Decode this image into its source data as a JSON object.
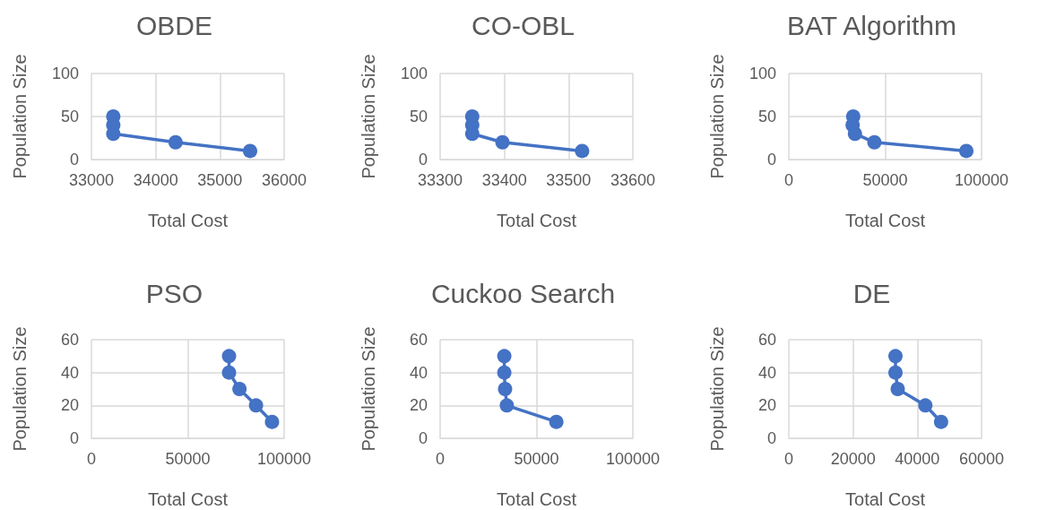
{
  "chart_data": [
    {
      "type": "line",
      "title": "OBDE",
      "xlabel": "Total Cost",
      "ylabel": "Population Size",
      "x": [
        33340,
        33340,
        33340,
        34310,
        35470
      ],
      "values": [
        50,
        40,
        30,
        20,
        10
      ],
      "color": "#4472c4",
      "xlim": [
        33000,
        36000
      ],
      "xticks": [
        33000,
        34000,
        35000,
        36000
      ],
      "ylim": [
        0,
        100
      ],
      "yticks": [
        0,
        50,
        100
      ],
      "grid": true,
      "marker": "circle",
      "line_style": "solid"
    },
    {
      "type": "line",
      "title": "CO-OBL",
      "xlabel": "Total Cost",
      "ylabel": "Population Size",
      "x": [
        33350,
        33350,
        33350,
        33397,
        33521
      ],
      "values": [
        50,
        40,
        30,
        20,
        10
      ],
      "color": "#4472c4",
      "xlim": [
        33300,
        33600
      ],
      "xticks": [
        33300,
        33400,
        33500,
        33600
      ],
      "ylim": [
        0,
        100
      ],
      "yticks": [
        0,
        50,
        100
      ],
      "grid": true,
      "marker": "circle",
      "line_style": "solid"
    },
    {
      "type": "line",
      "title": "BAT Algorithm",
      "xlabel": "Total Cost",
      "ylabel": "Population Size",
      "x": [
        33400,
        33100,
        34300,
        44400,
        92100
      ],
      "values": [
        50,
        40,
        30,
        20,
        10
      ],
      "color": "#4472c4",
      "xlim": [
        0,
        100000
      ],
      "xticks": [
        0,
        50000,
        100000
      ],
      "ylim": [
        0,
        100
      ],
      "yticks": [
        0,
        50,
        100
      ],
      "grid": true,
      "marker": "circle",
      "line_style": "solid"
    },
    {
      "type": "line",
      "title": "PSO",
      "xlabel": "Total Cost",
      "ylabel": "Population Size",
      "x": [
        71400,
        71400,
        76800,
        85400,
        93700
      ],
      "values": [
        50,
        40,
        30,
        20,
        10
      ],
      "color": "#4472c4",
      "xlim": [
        0,
        100000
      ],
      "xticks": [
        0,
        50000,
        100000
      ],
      "ylim": [
        0,
        60
      ],
      "yticks": [
        0,
        20,
        40,
        60
      ],
      "grid": true,
      "marker": "circle",
      "line_style": "solid"
    },
    {
      "type": "line",
      "title": "Cuckoo Search",
      "xlabel": "Total Cost",
      "ylabel": "Population Size",
      "x": [
        33300,
        33300,
        33700,
        34600,
        60300
      ],
      "values": [
        50,
        40,
        30,
        20,
        10
      ],
      "color": "#4472c4",
      "xlim": [
        0,
        100000
      ],
      "xticks": [
        0,
        50000,
        100000
      ],
      "ylim": [
        0,
        60
      ],
      "yticks": [
        0,
        20,
        40,
        60
      ],
      "grid": true,
      "marker": "circle",
      "line_style": "solid"
    },
    {
      "type": "line",
      "title": "DE",
      "xlabel": "Total Cost",
      "ylabel": "Population Size",
      "x": [
        33200,
        33200,
        33900,
        42500,
        47400
      ],
      "values": [
        50,
        40,
        30,
        20,
        10
      ],
      "color": "#4472c4",
      "xlim": [
        0,
        60000
      ],
      "xticks": [
        0,
        20000,
        40000,
        60000
      ],
      "ylim": [
        0,
        60
      ],
      "yticks": [
        0,
        20,
        40,
        60
      ],
      "grid": true,
      "marker": "circle",
      "line_style": "solid"
    }
  ]
}
